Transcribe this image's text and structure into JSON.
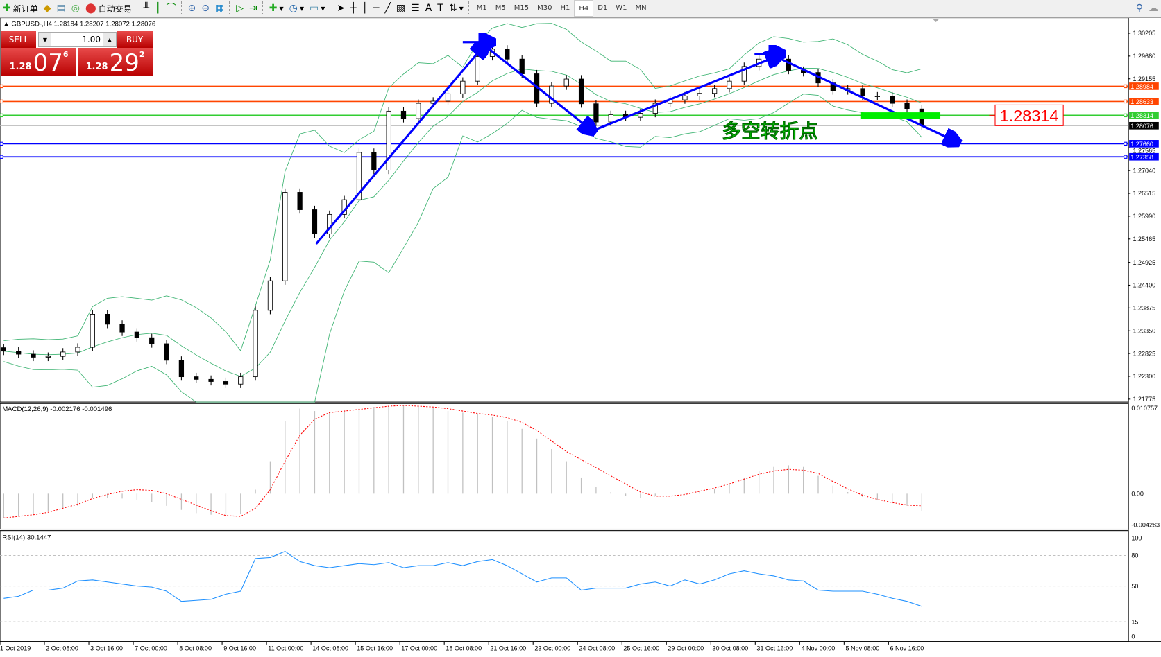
{
  "toolbar": {
    "new_order": "新订单",
    "auto_trading": "自动交易",
    "timeframes": [
      "M1",
      "M5",
      "M15",
      "M30",
      "H1",
      "H4",
      "D1",
      "W1",
      "MN"
    ],
    "active_timeframe": "H4"
  },
  "chart": {
    "header": "GBPUSD-,H4  1.28184 1.28207 1.28072 1.28076",
    "annotation": "多空转折点",
    "annotation_color": "#00dd00",
    "price_label": "1.28314",
    "colors": {
      "bull_bear_candle": "#000000",
      "bollinger": "#3cb371",
      "trend_arrows": "#0000ff",
      "resistance": "#ff4500",
      "support_zone": "#00ee00"
    }
  },
  "trade_panel": {
    "sell_label": "SELL",
    "buy_label": "BUY",
    "lot": "1.00",
    "sell_prefix": "1.28",
    "sell_big": "07",
    "sell_sup": "6",
    "buy_prefix": "1.28",
    "buy_big": "29",
    "buy_sup": "2"
  },
  "price_axis": {
    "ticks": [
      "1.30205",
      "1.29680",
      "1.29155",
      "1.27565",
      "1.27040",
      "1.26515",
      "1.25990",
      "1.25465",
      "1.24925",
      "1.24400",
      "1.23875",
      "1.23350",
      "1.22825",
      "1.22300",
      "1.21775"
    ],
    "levels": [
      {
        "value": "1.28984",
        "color": "#ff4500"
      },
      {
        "value": "1.28633",
        "color": "#ff4500"
      },
      {
        "value": "1.28314",
        "color": "#32cd32"
      },
      {
        "value": "1.28076",
        "color": "#000000"
      },
      {
        "value": "1.27660",
        "color": "#0000ff"
      },
      {
        "value": "1.27358",
        "color": "#0000ff"
      }
    ]
  },
  "time_axis": [
    "1 Oct 2019",
    "2 Oct 08:00",
    "3 Oct 16:00",
    "7 Oct 00:00",
    "8 Oct 08:00",
    "9 Oct 16:00",
    "11 Oct 00:00",
    "14 Oct 08:00",
    "15 Oct 16:00",
    "17 Oct 00:00",
    "18 Oct 08:00",
    "21 Oct 16:00",
    "23 Oct 00:00",
    "24 Oct 08:00",
    "25 Oct 16:00",
    "29 Oct 00:00",
    "30 Oct 08:00",
    "31 Oct 16:00",
    "4 Nov 00:00",
    "5 Nov 08:00",
    "6 Nov 16:00"
  ],
  "macd": {
    "label": "MACD(12,26,9) -0.002176 -0.001496",
    "ticks": [
      "0.010757",
      "0.00",
      "-0.004283"
    ]
  },
  "rsi": {
    "label": "RSI(14) 30.1447",
    "ticks": [
      "100",
      "80",
      "50",
      "15",
      "0"
    ]
  },
  "chart_data": {
    "type": "candlestick",
    "symbol": "GBPUSD-",
    "timeframe": "H4",
    "ylim": [
      1.21775,
      1.30205
    ],
    "close": [
      1.2288,
      1.2281,
      1.2274,
      1.2276,
      1.2286,
      1.2297,
      1.2373,
      1.235,
      1.2332,
      1.2319,
      1.2305,
      1.2267,
      1.2229,
      1.2223,
      1.2218,
      1.2212,
      1.2229,
      1.2382,
      1.245,
      1.2654,
      1.2614,
      1.2558,
      1.2603,
      1.2637,
      1.2746,
      1.2705,
      1.2841,
      1.2824,
      1.2859,
      1.2864,
      1.2881,
      1.291,
      1.2967,
      1.2984,
      1.2961,
      1.2927,
      1.2859,
      1.2899,
      1.2915,
      1.2858,
      1.2816,
      1.2833,
      1.2827,
      1.2836,
      1.2859,
      1.2867,
      1.2876,
      1.2882,
      1.2893,
      1.291,
      1.2944,
      1.2961,
      1.2961,
      1.2935,
      1.293,
      1.2906,
      1.2888,
      1.2893,
      1.2876,
      1.2876,
      1.2859,
      1.2846,
      1.28076
    ],
    "macd_hist": [
      -0.003,
      -0.0028,
      -0.0025,
      -0.0022,
      -0.0018,
      -0.0015,
      -0.0005,
      -0.0005,
      -0.0006,
      -0.0008,
      -0.001,
      -0.0015,
      -0.002,
      -0.0024,
      -0.0026,
      -0.0027,
      -0.0025,
      0.0005,
      0.004,
      0.009,
      0.0105,
      0.0102,
      0.01,
      0.0102,
      0.0105,
      0.0107,
      0.0108,
      0.0109,
      0.0108,
      0.0106,
      0.0102,
      0.01,
      0.0098,
      0.0095,
      0.009,
      0.008,
      0.0068,
      0.0055,
      0.004,
      0.002,
      0.0008,
      0.0002,
      -0.0003,
      -0.0005,
      -0.0003,
      0.0,
      0.0001,
      0.0003,
      0.0006,
      0.0012,
      0.002,
      0.0028,
      0.0033,
      0.0035,
      0.0033,
      0.0022,
      0.001,
      0.0002,
      -0.0004,
      -0.0008,
      -0.0012,
      -0.0015,
      -0.002176
    ],
    "macd_signal": [
      -0.003,
      -0.0028,
      -0.0026,
      -0.0023,
      -0.0018,
      -0.0013,
      -0.0006,
      -0.0001,
      0.0003,
      0.0005,
      0.0004,
      0.0,
      -0.0007,
      -0.0014,
      -0.0021,
      -0.0027,
      -0.0028,
      -0.0018,
      0.0005,
      0.004,
      0.0072,
      0.0092,
      0.01,
      0.0102,
      0.0104,
      0.0106,
      0.0108,
      0.0109,
      0.0108,
      0.0107,
      0.0105,
      0.0102,
      0.0099,
      0.0097,
      0.0094,
      0.0088,
      0.0078,
      0.0065,
      0.0052,
      0.0042,
      0.0032,
      0.0022,
      0.0012,
      0.0002,
      -0.0003,
      -0.0003,
      -0.0001,
      0.0003,
      0.0007,
      0.0012,
      0.0018,
      0.0024,
      0.0028,
      0.003,
      0.0029,
      0.0025,
      0.0015,
      0.0006,
      -0.0002,
      -0.0007,
      -0.0011,
      -0.0014,
      -0.001496
    ],
    "macd_ylim": [
      -0.004283,
      0.010757
    ],
    "rsi": [
      38,
      40,
      46,
      46,
      48,
      55,
      56,
      54,
      52,
      50,
      49,
      45,
      35,
      36,
      37,
      42,
      45,
      77,
      78,
      84,
      74,
      70,
      68,
      70,
      72,
      71,
      73,
      68,
      70,
      70,
      73,
      70,
      74,
      76,
      70,
      62,
      54,
      58,
      58,
      46,
      48,
      48,
      48,
      52,
      54,
      50,
      56,
      52,
      56,
      62,
      65,
      62,
      60,
      56,
      55,
      46,
      45,
      45,
      45,
      42,
      38,
      35,
      30.1447
    ],
    "rsi_levels": [
      80,
      50,
      15
    ]
  }
}
